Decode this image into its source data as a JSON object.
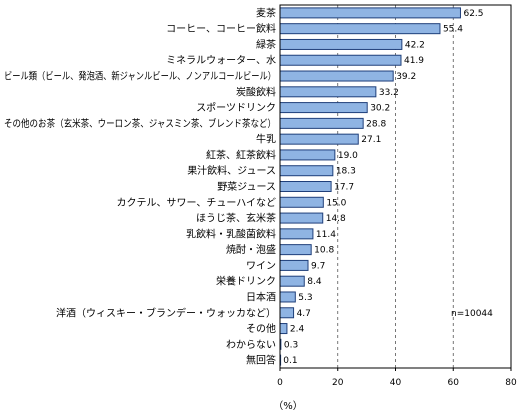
{
  "chart_data": {
    "type": "bar",
    "orientation": "horizontal",
    "categories": [
      "麦茶",
      "コーヒー、コーヒー飲料",
      "緑茶",
      "ミネラルウォーター、水",
      "ビール類（ビール、発泡酒、新ジャンルビール、ノンアルコールビール）",
      "炭酸飲料",
      "スポーツドリンク",
      "その他のお茶（玄米茶、ウーロン茶、ジャスミン茶、ブレンド茶など）",
      "牛乳",
      "紅茶、紅茶飲料",
      "果汁飲料、ジュース",
      "野菜ジュース",
      "カクテル、サワー、チューハイなど",
      "ほうじ茶、玄米茶",
      "乳飲料・乳酸菌飲料",
      "焼酎・泡盛",
      "ワイン",
      "栄養ドリンク",
      "日本酒",
      "洋酒（ウィスキー・ブランデー・ウォッカなど）",
      "その他",
      "わからない",
      "無回答"
    ],
    "values": [
      62.5,
      55.4,
      42.2,
      41.9,
      39.2,
      33.2,
      30.2,
      28.8,
      27.1,
      19.0,
      18.3,
      17.7,
      15.0,
      14.8,
      11.4,
      10.8,
      9.7,
      8.4,
      5.3,
      4.7,
      2.4,
      0.3,
      0.1
    ],
    "value_labels": [
      "62.5",
      "55.4",
      "42.2",
      "41.9",
      "39.2",
      "33.2",
      "30.2",
      "28.8",
      "27.1",
      "19.0",
      "18.3",
      "17.7",
      "15.0",
      "14.8",
      "11.4",
      "10.8",
      "9.7",
      "8.4",
      "5.3",
      "4.7",
      "2.4",
      "0.3",
      "0.1"
    ],
    "xlim": [
      0,
      80
    ],
    "xticks": [
      "0",
      "20",
      "40",
      "60",
      "80"
    ],
    "xlabel": "（%）",
    "annotation": "n=10044",
    "grid": "dashed vertical at 20, 40, 60",
    "bar_color": "#8fb4e3",
    "bar_border_color": "#1f3f7a"
  }
}
